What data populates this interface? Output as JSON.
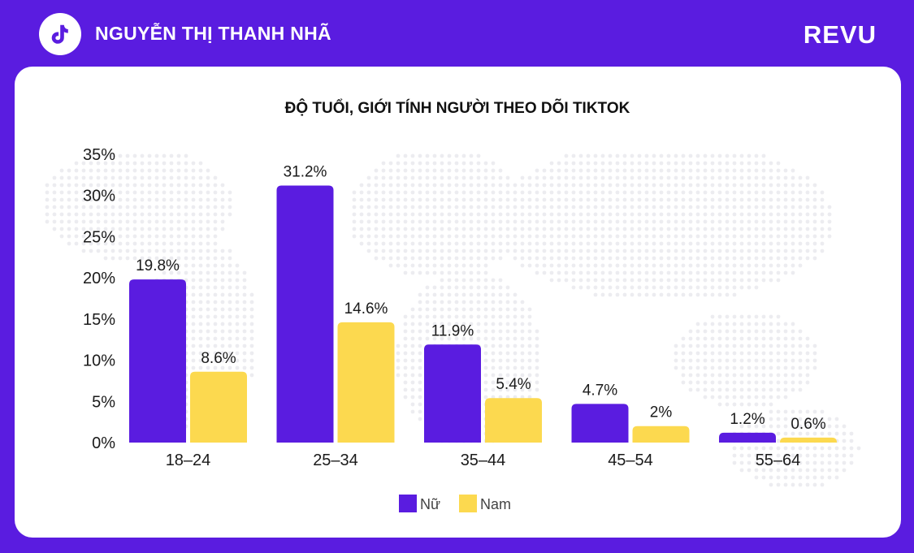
{
  "header": {
    "creator_name": "NGUYỄN THỊ THANH NHÃ",
    "brand": "REVU",
    "logo_icon": "tiktok-icon"
  },
  "colors": {
    "background": "#5a1ce0",
    "card": "#ffffff",
    "female": "#5a1ce0",
    "male": "#fcd94f"
  },
  "chart_data": {
    "type": "bar",
    "title": "ĐỘ TUỔI, GIỚI TÍNH NGƯỜI THEO DÕI TIKTOK",
    "categories": [
      "18–24",
      "25–34",
      "35–44",
      "45–54",
      "55–64"
    ],
    "series": [
      {
        "name": "Nữ",
        "color": "#5a1ce0",
        "values": [
          19.8,
          31.2,
          11.9,
          4.7,
          1.2
        ],
        "labels": [
          "19.8%",
          "31.2%",
          "11.9%",
          "4.7%",
          "1.2%"
        ]
      },
      {
        "name": "Nam",
        "color": "#fcd94f",
        "values": [
          8.6,
          14.6,
          5.4,
          2,
          0.6
        ],
        "labels": [
          "8.6%",
          "14.6%",
          "5.4%",
          "2%",
          "0.6%"
        ]
      }
    ],
    "yticks": [
      "0%",
      "5%",
      "10%",
      "15%",
      "20%",
      "25%",
      "30%",
      "35%"
    ],
    "ylim": [
      0,
      35
    ],
    "xlabel": "",
    "ylabel": "",
    "grid": false,
    "legend": "bottom-center"
  }
}
